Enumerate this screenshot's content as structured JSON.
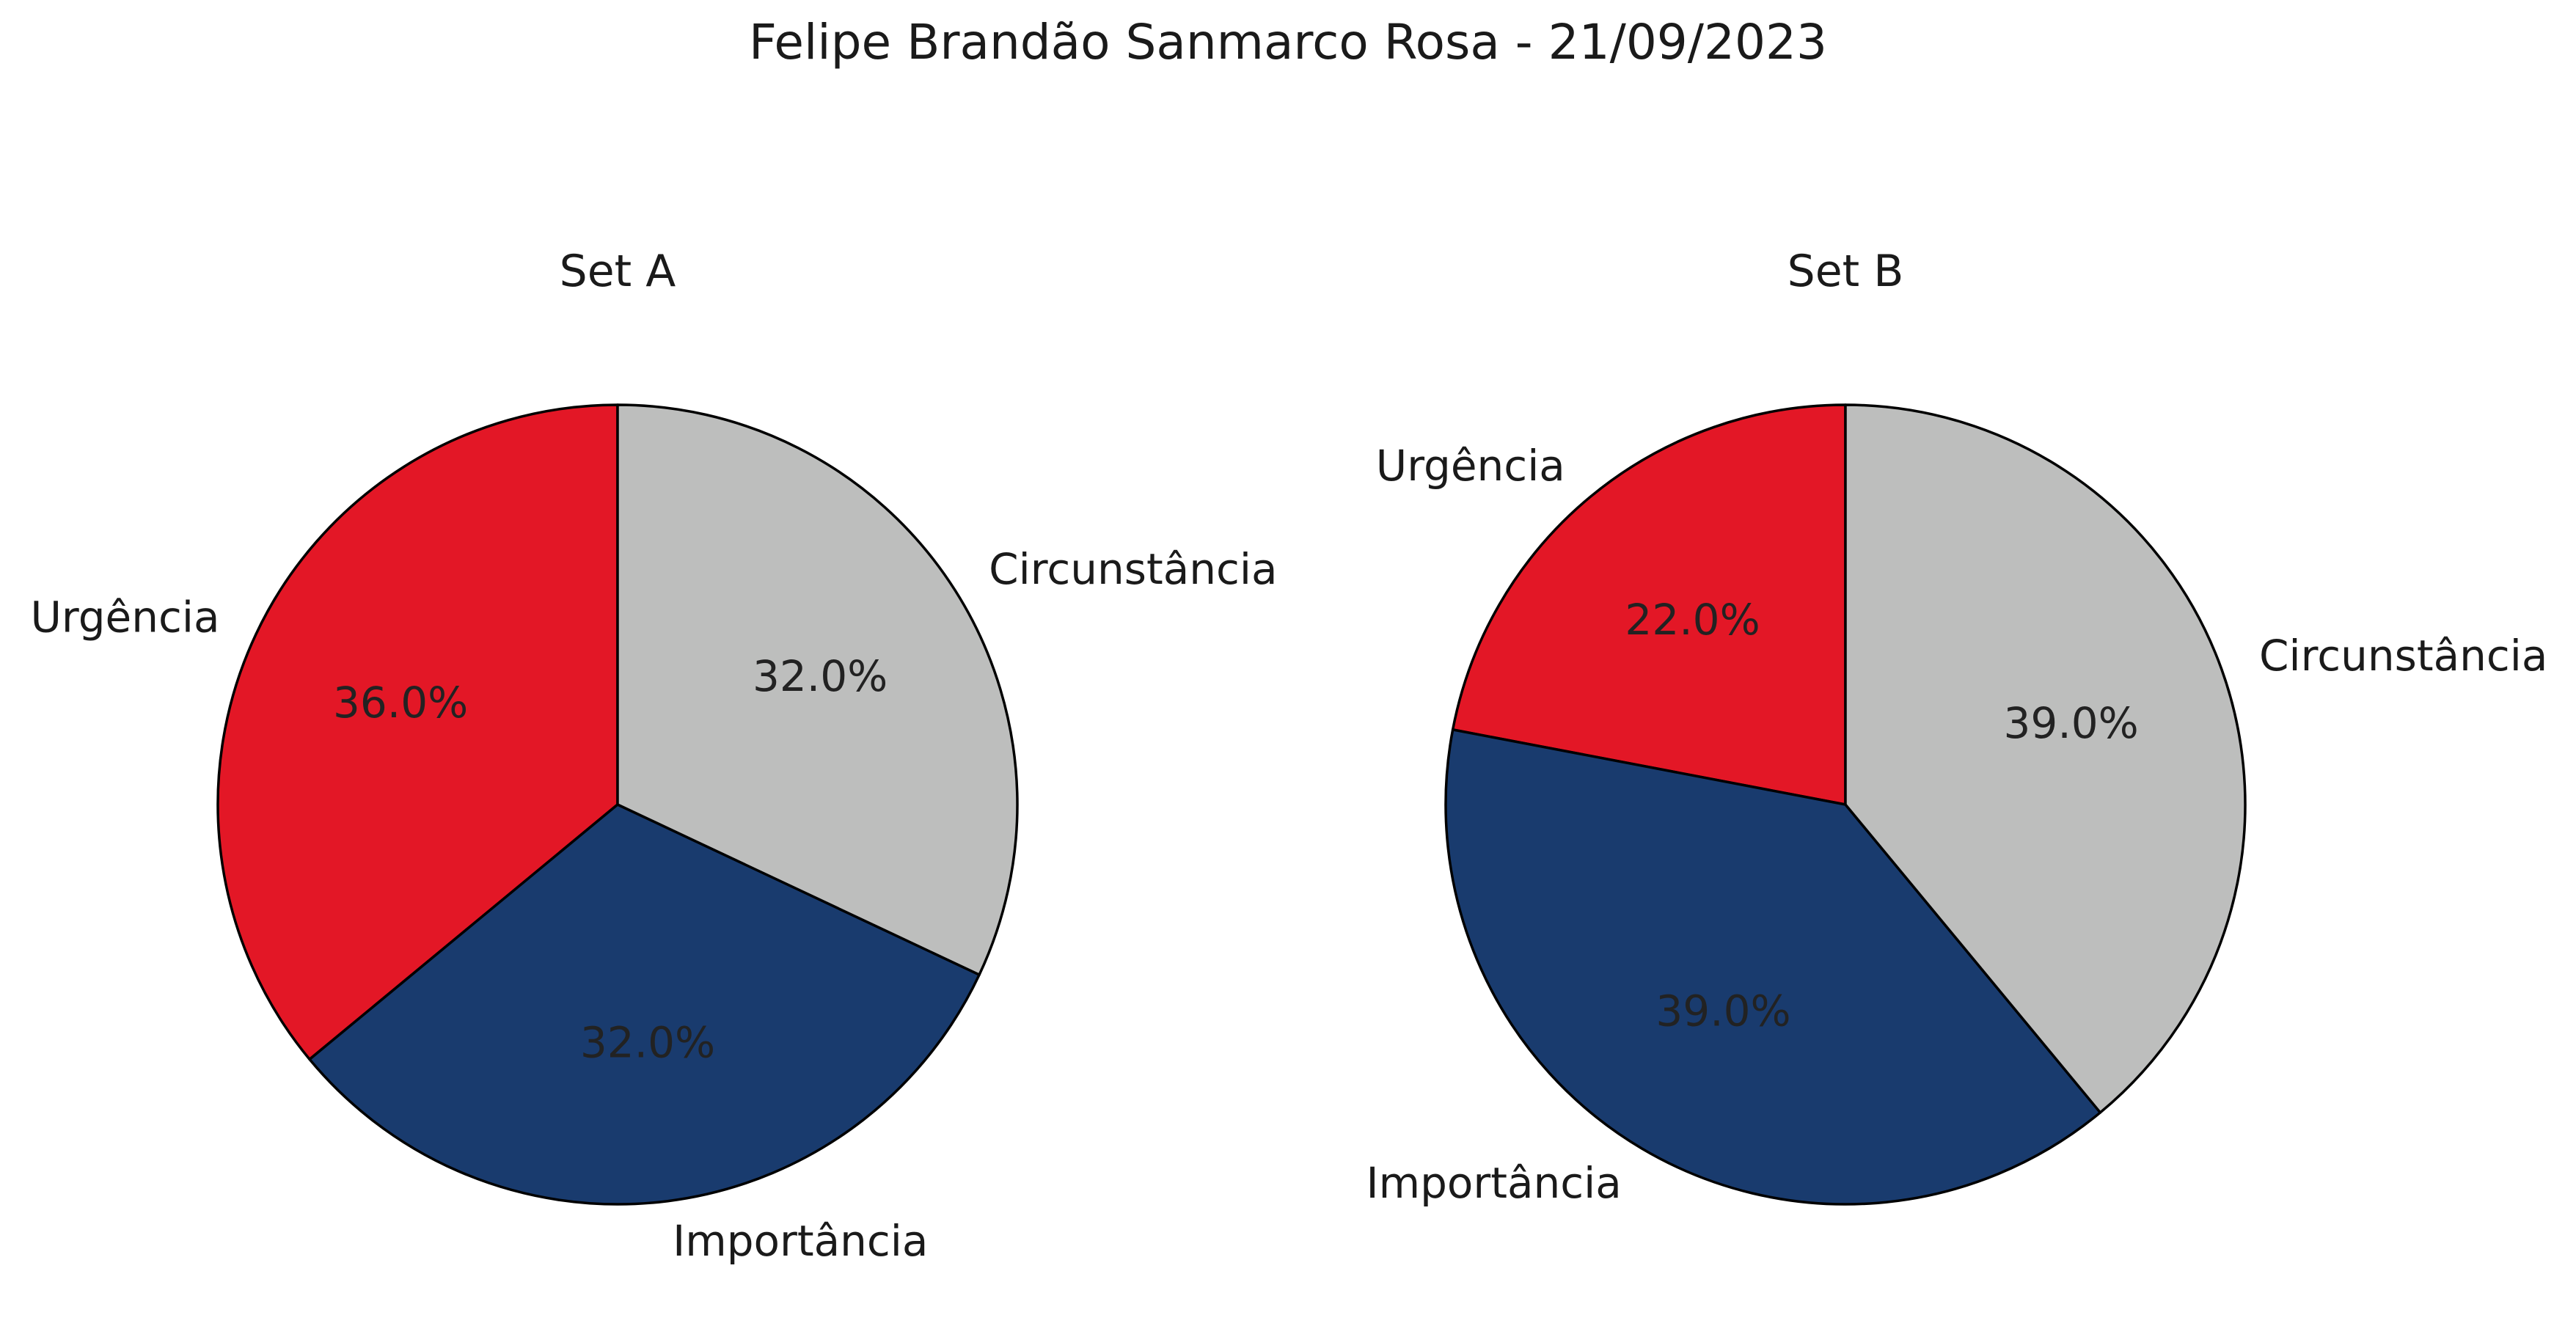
{
  "title": "Felipe Brandão Sanmarco Rosa - 21/09/2023",
  "chart_data": [
    {
      "type": "pie",
      "title": "Set A",
      "labels": [
        "Urgência",
        "Importância",
        "Circunstância"
      ],
      "values": [
        36.0,
        32.0,
        32.0
      ],
      "value_labels": [
        "36.0%",
        "32.0%",
        "32.0%"
      ],
      "colors": [
        "#e31726",
        "#193b6e",
        "#bdbebd"
      ],
      "start_angle_deg": 90,
      "direction": "counterclockwise",
      "edge_color": "#000000"
    },
    {
      "type": "pie",
      "title": "Set B",
      "labels": [
        "Urgência",
        "Importância",
        "Circunstância"
      ],
      "values": [
        22.0,
        39.0,
        39.0
      ],
      "value_labels": [
        "22.0%",
        "39.0%",
        "39.0%"
      ],
      "colors": [
        "#e31726",
        "#193b6e",
        "#bdbebd"
      ],
      "start_angle_deg": 90,
      "direction": "counterclockwise",
      "edge_color": "#000000"
    }
  ]
}
